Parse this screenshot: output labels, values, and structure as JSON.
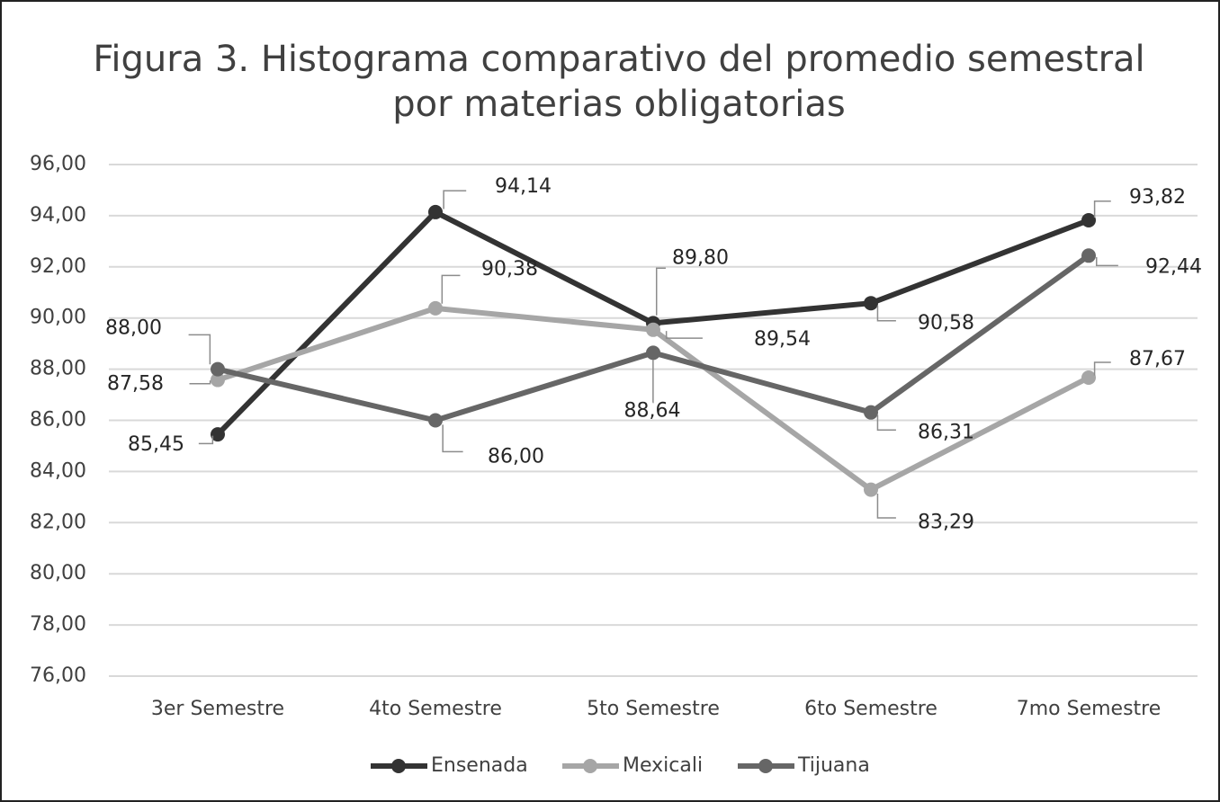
{
  "chart_data": {
    "type": "line",
    "title": [
      "Figura 3. Histograma comparativo del promedio semestral",
      "por materias obligatorias"
    ],
    "categories": [
      "3er Semestre",
      "4to Semestre",
      "5to Semestre",
      "6to Semestre",
      "7mo Semestre"
    ],
    "series": [
      {
        "name": "Ensenada",
        "color": "#333333",
        "values": [
          85.45,
          94.14,
          89.8,
          90.58,
          93.82
        ],
        "value_labels": [
          "85,45",
          "94,14",
          "89,80",
          "90,58",
          "93,82"
        ]
      },
      {
        "name": "Mexicali",
        "color": "#a6a6a6",
        "values": [
          87.58,
          90.38,
          89.54,
          83.29,
          87.67
        ],
        "value_labels": [
          "87,58",
          "90,38",
          "89,54",
          "83,29",
          "87,67"
        ]
      },
      {
        "name": "Tijuana",
        "color": "#666666",
        "values": [
          88.0,
          86.0,
          88.64,
          86.31,
          92.44
        ],
        "value_labels": [
          "88,00",
          "86,00",
          "88,64",
          "86,31",
          "92,44"
        ]
      }
    ],
    "ylim": [
      76,
      96
    ],
    "yticks": [
      {
        "value": 76,
        "label": "76,00"
      },
      {
        "value": 78,
        "label": "78,00"
      },
      {
        "value": 80,
        "label": "80,00"
      },
      {
        "value": 82,
        "label": "82,00"
      },
      {
        "value": 84,
        "label": "84,00"
      },
      {
        "value": 86,
        "label": "86,00"
      },
      {
        "value": 88,
        "label": "88,00"
      },
      {
        "value": 90,
        "label": "90,00"
      },
      {
        "value": 92,
        "label": "92,00"
      },
      {
        "value": 94,
        "label": "94,00"
      },
      {
        "value": 96,
        "label": "96,00"
      }
    ],
    "grid": true,
    "legend": "bottom"
  }
}
